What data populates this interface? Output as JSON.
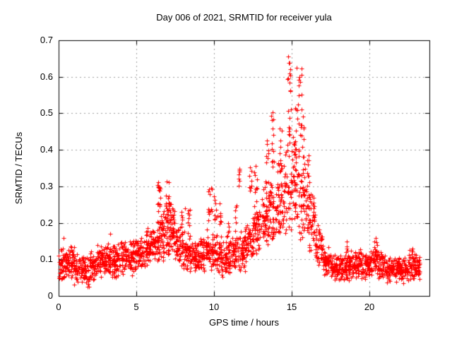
{
  "chart_data": {
    "type": "scatter",
    "title": "Day 006 of 2021, SRMTID for receiver yula",
    "xlabel": "GPS time / hours",
    "ylabel": "SRMTID / TECUs",
    "xlim": [
      0,
      23.86
    ],
    "ylim": [
      0,
      0.7
    ],
    "xticks": [
      0,
      5,
      10,
      15,
      20
    ],
    "xtick_labels": [
      "0",
      "5",
      "10",
      "15",
      "20"
    ],
    "yticks": [
      0,
      0.1,
      0.2,
      0.3,
      0.4,
      0.5,
      0.6,
      0.7
    ],
    "ytick_labels": [
      "0",
      "0.1",
      "0.2",
      "0.3",
      "0.4",
      "0.5",
      "0.6",
      "0.7"
    ],
    "grid": true,
    "legend": "none",
    "marker": {
      "shape": "plus",
      "color": "#ff0000",
      "size": 7
    },
    "colors": {
      "axis": "#000000",
      "grid": "#a0a0a0",
      "background": "#ffffff",
      "text": "#000000"
    },
    "seed": 20210106,
    "series": [
      {
        "name": "SRMTID",
        "note": "clusters = [x_start_hr, x_end_hr, y_min_TECU, y_max_TECU, n_points, mode(0=central,1=uniform)]",
        "clusters": [
          [
            0.0,
            0.5,
            0.035,
            0.135,
            52,
            0
          ],
          [
            0.5,
            1.0,
            0.04,
            0.15,
            52,
            0
          ],
          [
            1.0,
            1.5,
            0.025,
            0.12,
            48,
            0
          ],
          [
            1.5,
            2.0,
            0.02,
            0.115,
            48,
            0
          ],
          [
            2.0,
            2.5,
            0.04,
            0.13,
            52,
            0
          ],
          [
            2.5,
            3.0,
            0.05,
            0.145,
            52,
            0
          ],
          [
            3.0,
            3.5,
            0.05,
            0.15,
            52,
            0
          ],
          [
            3.5,
            4.0,
            0.045,
            0.15,
            52,
            0
          ],
          [
            4.0,
            4.5,
            0.055,
            0.16,
            52,
            0
          ],
          [
            4.5,
            5.0,
            0.05,
            0.165,
            52,
            0
          ],
          [
            5.0,
            5.5,
            0.06,
            0.17,
            50,
            0
          ],
          [
            5.5,
            6.0,
            0.07,
            0.19,
            50,
            0
          ],
          [
            6.0,
            6.5,
            0.08,
            0.22,
            52,
            0
          ],
          [
            6.5,
            7.0,
            0.09,
            0.26,
            52,
            0
          ],
          [
            7.0,
            7.5,
            0.1,
            0.26,
            52,
            0
          ],
          [
            7.5,
            8.0,
            0.08,
            0.2,
            50,
            0
          ],
          [
            8.0,
            8.5,
            0.06,
            0.18,
            50,
            0
          ],
          [
            8.5,
            9.0,
            0.05,
            0.16,
            50,
            0
          ],
          [
            9.0,
            9.5,
            0.05,
            0.17,
            50,
            0
          ],
          [
            9.5,
            10.0,
            0.06,
            0.19,
            50,
            0
          ],
          [
            10.0,
            10.5,
            0.05,
            0.17,
            50,
            0
          ],
          [
            10.5,
            11.0,
            0.05,
            0.16,
            50,
            0
          ],
          [
            11.0,
            11.5,
            0.06,
            0.17,
            50,
            0
          ],
          [
            11.5,
            12.0,
            0.06,
            0.18,
            50,
            0
          ],
          [
            12.0,
            12.5,
            0.08,
            0.22,
            50,
            0
          ],
          [
            12.5,
            13.0,
            0.1,
            0.27,
            50,
            0
          ],
          [
            13.0,
            13.5,
            0.12,
            0.3,
            50,
            0
          ],
          [
            13.5,
            14.0,
            0.13,
            0.33,
            50,
            0
          ],
          [
            14.0,
            14.5,
            0.14,
            0.38,
            50,
            0
          ],
          [
            14.5,
            15.0,
            0.16,
            0.42,
            46,
            0
          ],
          [
            15.0,
            15.5,
            0.15,
            0.45,
            46,
            0
          ],
          [
            15.5,
            16.0,
            0.12,
            0.4,
            48,
            0
          ],
          [
            16.0,
            16.5,
            0.1,
            0.32,
            48,
            0
          ],
          [
            16.5,
            17.0,
            0.06,
            0.2,
            48,
            0
          ],
          [
            17.0,
            17.5,
            0.05,
            0.14,
            52,
            0
          ],
          [
            17.5,
            18.0,
            0.04,
            0.12,
            52,
            0
          ],
          [
            18.0,
            18.5,
            0.04,
            0.12,
            52,
            0
          ],
          [
            18.5,
            19.0,
            0.04,
            0.13,
            52,
            0
          ],
          [
            19.0,
            19.5,
            0.045,
            0.13,
            52,
            0
          ],
          [
            19.5,
            20.0,
            0.04,
            0.12,
            52,
            0
          ],
          [
            20.0,
            20.5,
            0.05,
            0.14,
            52,
            0
          ],
          [
            20.5,
            21.0,
            0.04,
            0.13,
            52,
            0
          ],
          [
            21.0,
            21.5,
            0.03,
            0.11,
            52,
            0
          ],
          [
            21.5,
            22.0,
            0.035,
            0.11,
            52,
            0
          ],
          [
            22.0,
            22.5,
            0.03,
            0.11,
            52,
            0
          ],
          [
            22.5,
            23.0,
            0.035,
            0.12,
            52,
            0
          ],
          [
            23.0,
            23.25,
            0.04,
            0.115,
            26,
            0
          ],
          [
            6.3,
            6.55,
            0.22,
            0.31,
            14,
            1
          ],
          [
            6.85,
            7.1,
            0.2,
            0.315,
            14,
            1
          ],
          [
            7.15,
            7.35,
            0.18,
            0.26,
            10,
            1
          ],
          [
            7.9,
            8.0,
            0.15,
            0.24,
            6,
            1
          ],
          [
            8.3,
            8.45,
            0.14,
            0.24,
            8,
            1
          ],
          [
            9.6,
            9.9,
            0.2,
            0.3,
            12,
            1
          ],
          [
            10.0,
            10.15,
            0.2,
            0.27,
            7,
            1
          ],
          [
            10.2,
            10.45,
            0.18,
            0.26,
            8,
            1
          ],
          [
            10.8,
            10.95,
            0.15,
            0.22,
            6,
            1
          ],
          [
            11.35,
            11.5,
            0.15,
            0.25,
            6,
            1
          ],
          [
            11.55,
            11.7,
            0.28,
            0.35,
            6,
            1
          ],
          [
            12.25,
            12.45,
            0.25,
            0.35,
            8,
            1
          ],
          [
            12.6,
            12.8,
            0.28,
            0.36,
            8,
            1
          ],
          [
            13.3,
            13.5,
            0.3,
            0.45,
            10,
            1
          ],
          [
            13.65,
            13.85,
            0.35,
            0.5,
            12,
            1
          ],
          [
            14.1,
            14.4,
            0.32,
            0.48,
            12,
            1
          ],
          [
            14.72,
            14.95,
            0.42,
            0.662,
            16,
            1
          ],
          [
            15.4,
            15.65,
            0.44,
            0.625,
            14,
            1
          ],
          [
            15.15,
            15.4,
            0.38,
            0.52,
            10,
            1
          ],
          [
            15.6,
            15.8,
            0.38,
            0.5,
            8,
            1
          ],
          [
            16.0,
            16.2,
            0.3,
            0.39,
            8,
            1
          ],
          [
            20.3,
            20.5,
            0.12,
            0.155,
            6,
            1
          ],
          [
            18.4,
            18.6,
            0.11,
            0.15,
            5,
            1
          ],
          [
            22.55,
            22.8,
            0.1,
            0.13,
            5,
            1
          ]
        ],
        "outliers": [
          [
            14.78,
            0.655
          ],
          [
            14.85,
            0.638
          ],
          [
            14.9,
            0.62
          ],
          [
            15.3,
            0.625
          ],
          [
            15.5,
            0.6
          ],
          [
            15.55,
            0.585
          ],
          [
            13.75,
            0.503
          ],
          [
            14.97,
            0.51
          ],
          [
            12.33,
            0.352
          ],
          [
            11.62,
            0.345
          ],
          [
            6.42,
            0.312
          ],
          [
            6.95,
            0.313
          ],
          [
            9.68,
            0.292
          ],
          [
            10.02,
            0.272
          ],
          [
            16.1,
            0.385
          ],
          [
            8.12,
            0.24
          ],
          [
            3.3,
            0.17
          ],
          [
            0.3,
            0.158
          ],
          [
            20.4,
            0.158
          ],
          [
            18.55,
            0.148
          ],
          [
            22.75,
            0.13
          ]
        ]
      }
    ]
  }
}
